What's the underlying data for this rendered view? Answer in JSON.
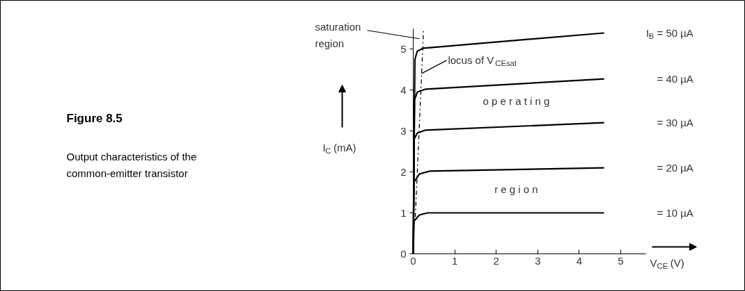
{
  "chart_data": {
    "type": "line",
    "title": "Figure 8.5",
    "subtitle": "Output characteristics of the\ncommon-emitter transistor",
    "xlabel": "V$_{CE}$ (V)",
    "ylabel": "I$_{C}$ (mA)",
    "xlim": [
      0,
      5.6
    ],
    "ylim": [
      0,
      5.5
    ],
    "xticks": [
      0,
      1,
      2,
      3,
      4,
      5
    ],
    "yticks": [
      0,
      1,
      2,
      3,
      4,
      5
    ],
    "grid": false,
    "marker": "none",
    "line_style": "solid",
    "series": [
      {
        "name": "I$_{B}$ = 50 µA",
        "color": "#000000",
        "x": [
          0,
          0.04,
          0.1,
          0.25,
          4.6
        ],
        "values": [
          0,
          4.75,
          4.95,
          5.02,
          5.39
        ]
      },
      {
        "name": "= 40 µA",
        "color": "#000000",
        "x": [
          0,
          0.03,
          0.1,
          0.3,
          4.6
        ],
        "values": [
          0,
          3.75,
          3.95,
          4.02,
          4.27
        ]
      },
      {
        "name": "= 30 µA",
        "color": "#000000",
        "x": [
          0,
          0.02,
          0.1,
          0.3,
          4.6
        ],
        "values": [
          0,
          2.8,
          2.95,
          3.02,
          3.2
        ]
      },
      {
        "name": "= 20 µA",
        "color": "#000000",
        "x": [
          0,
          0.02,
          0.15,
          0.4,
          4.6
        ],
        "values": [
          0,
          1.75,
          1.95,
          2.02,
          2.1
        ]
      },
      {
        "name": "= 10 µA",
        "color": "#000000",
        "x": [
          0,
          0.02,
          0.15,
          0.35,
          4.6
        ],
        "values": [
          0,
          0.8,
          0.95,
          1.0,
          1.0
        ]
      },
      {
        "color": "#000000",
        "line_style": "dashed",
        "x": [
          0.05,
          0.25
        ],
        "values": [
          0.9,
          5.5
        ]
      }
    ],
    "annotations": [
      {
        "text": "saturation\nregion",
        "x": 0.15,
        "y": 5.25
      },
      {
        "text": "locus of V$_{CEsat}$",
        "x": 0.2,
        "y": 4.4
      },
      "o p e r a t i n g",
      "r e g i o n"
    ]
  }
}
